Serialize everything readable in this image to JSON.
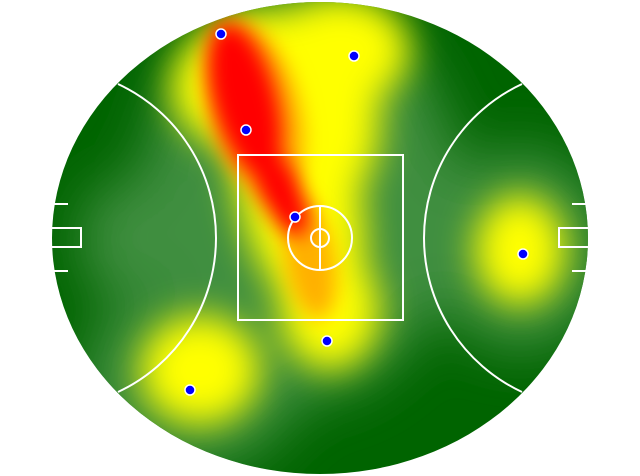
{
  "chart_data": {
    "type": "heatmap",
    "title": "",
    "colors": {
      "low": "#006400",
      "mid_low": "#3f8f3f",
      "mid": "#ffff00",
      "high": "#ff0000",
      "points": "#0000ff",
      "lines": "#ffffff"
    }
  }
}
